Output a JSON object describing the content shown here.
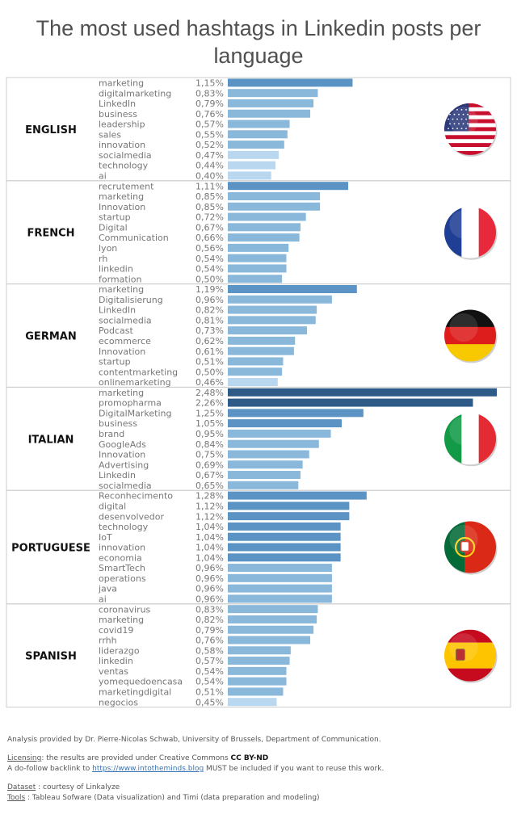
{
  "title": "The most used hashtags in Linkedin posts per language",
  "colors": {
    "bar_dark": "#2e5a87",
    "bar_mid": "#5b93c5",
    "bar_light": "#8ab8db",
    "bar_pale": "#b9d7ef",
    "section_border": "#cccccc",
    "label_text": "#777777",
    "group_text": "#111111"
  },
  "chart_data": {
    "type": "bar",
    "orientation": "horizontal",
    "value_unit": "%",
    "x_min": 0,
    "x_max": 2.48,
    "groups": [
      {
        "language": "ENGLISH",
        "flag": "usa-flag-icon",
        "hashtags": [
          "marketing",
          "digitalmarketing",
          "LinkedIn",
          "business",
          "leadership",
          "sales",
          "innovation",
          "socialmedia",
          "technology",
          "ai"
        ],
        "values": [
          1.15,
          0.83,
          0.79,
          0.76,
          0.57,
          0.55,
          0.52,
          0.47,
          0.44,
          0.4
        ],
        "labels": [
          "1,15%",
          "0,83%",
          "0,79%",
          "0,76%",
          "0,57%",
          "0,55%",
          "0,52%",
          "0,47%",
          "0,44%",
          "0,40%"
        ]
      },
      {
        "language": "FRENCH",
        "flag": "france-flag-icon",
        "hashtags": [
          "recrutement",
          "marketing",
          "Innovation",
          "startup",
          "Digital",
          "Communication",
          "lyon",
          "rh",
          "linkedin",
          "formation"
        ],
        "values": [
          1.11,
          0.85,
          0.85,
          0.72,
          0.67,
          0.66,
          0.56,
          0.54,
          0.54,
          0.5
        ],
        "labels": [
          "1,11%",
          "0,85%",
          "0,85%",
          "0,72%",
          "0,67%",
          "0,66%",
          "0,56%",
          "0,54%",
          "0,54%",
          "0,50%"
        ]
      },
      {
        "language": "GERMAN",
        "flag": "germany-flag-icon",
        "hashtags": [
          "marketing",
          "Digitalisierung",
          "LinkedIn",
          "socialmedia",
          "Podcast",
          "ecommerce",
          "Innovation",
          "startup",
          "contentmarketing",
          "onlinemarketing"
        ],
        "values": [
          1.19,
          0.96,
          0.82,
          0.81,
          0.73,
          0.62,
          0.61,
          0.51,
          0.5,
          0.46
        ],
        "labels": [
          "1,19%",
          "0,96%",
          "0,82%",
          "0,81%",
          "0,73%",
          "0,62%",
          "0,61%",
          "0,51%",
          "0,50%",
          "0,46%"
        ]
      },
      {
        "language": "ITALIAN",
        "flag": "italy-flag-icon",
        "hashtags": [
          "marketing",
          "promopharma",
          "DigitalMarketing",
          "business",
          "brand",
          "GoogleAds",
          "Innovation",
          "Advertising",
          "Linkedin",
          "socialmedia"
        ],
        "values": [
          2.48,
          2.26,
          1.25,
          1.05,
          0.95,
          0.84,
          0.75,
          0.69,
          0.67,
          0.65
        ],
        "labels": [
          "2,48%",
          "2,26%",
          "1,25%",
          "1,05%",
          "0,95%",
          "0,84%",
          "0,75%",
          "0,69%",
          "0,67%",
          "0,65%"
        ]
      },
      {
        "language": "PORTUGUESE",
        "flag": "portugal-flag-icon",
        "hashtags": [
          "Reconhecimento",
          "digital",
          "desenvolvedor",
          "technology",
          "IoT",
          "innovation",
          "economia",
          "SmartTech",
          "operations",
          "java",
          "ai"
        ],
        "values": [
          1.28,
          1.12,
          1.12,
          1.04,
          1.04,
          1.04,
          1.04,
          0.96,
          0.96,
          0.96,
          0.96
        ],
        "labels": [
          "1,28%",
          "1,12%",
          "1,12%",
          "1,04%",
          "1,04%",
          "1,04%",
          "1,04%",
          "0,96%",
          "0,96%",
          "0,96%",
          "0,96%"
        ]
      },
      {
        "language": "SPANISH",
        "flag": "spain-flag-icon",
        "hashtags": [
          "coronavirus",
          "marketing",
          "covid19",
          "rrhh",
          "liderazgo",
          "linkedin",
          "ventas",
          "yomequedoencasa",
          "marketingdigital",
          "negocios"
        ],
        "values": [
          0.83,
          0.82,
          0.79,
          0.76,
          0.58,
          0.57,
          0.54,
          0.54,
          0.51,
          0.45
        ],
        "labels": [
          "0,83%",
          "0,82%",
          "0,79%",
          "0,76%",
          "0,58%",
          "0,57%",
          "0,54%",
          "0,54%",
          "0,51%",
          "0,45%"
        ]
      }
    ]
  },
  "footer": {
    "analysis": "Analysis provided by Dr. Pierre-Nicolas Schwab, University of Brussels, Department of Communication.",
    "licensing_label": "Licensing",
    "licensing_text": ": the results are provided under Creative Commons ",
    "licensing_bold": "CC BY-ND",
    "backlink_pre": "A do-follow backlink to ",
    "backlink_url": "https://www.intotheminds.blog",
    "backlink_post": " MUST be included if you want to reuse this work.",
    "dataset_label": "Dataset",
    "dataset_text": " : courtesy of Linkalyze",
    "tools_label": "Tools",
    "tools_text": " : Tableau Sofware (Data visualization) and Timi (data preparation and modeling)"
  }
}
